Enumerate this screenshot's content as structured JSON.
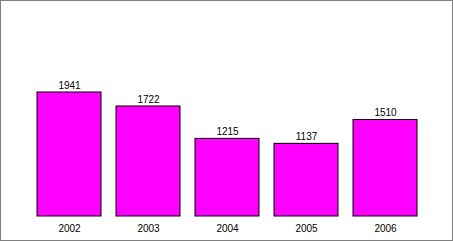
{
  "chart_data": {
    "type": "bar",
    "categories": [
      "2002",
      "2003",
      "2004",
      "2005",
      "2006"
    ],
    "values": [
      1941,
      1722,
      1215,
      1137,
      1510
    ],
    "color": "#ff00ff",
    "data_labels": true,
    "tick_labels": "x"
  }
}
